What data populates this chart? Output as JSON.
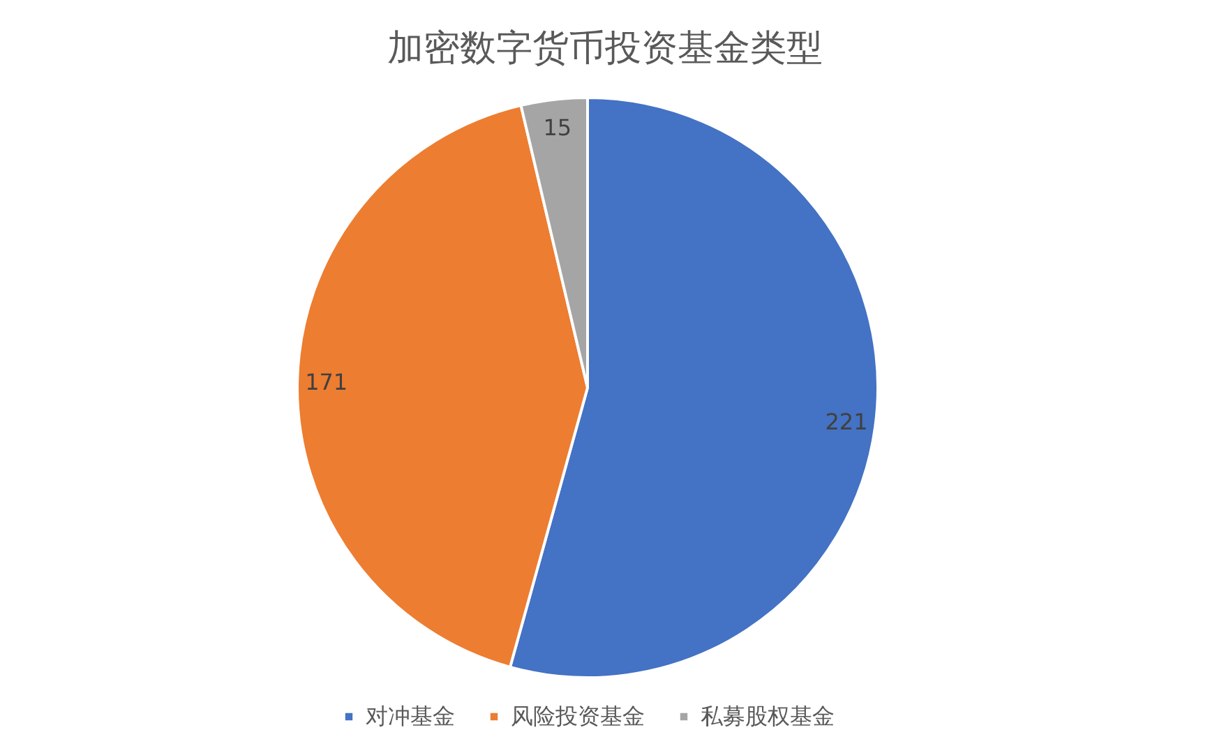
{
  "chart_data": {
    "type": "pie",
    "title": "加密数字货币投资基金类型",
    "categories": [
      "对冲基金",
      "风险投资基金",
      "私募股权基金"
    ],
    "values": [
      221,
      171,
      15
    ],
    "colors": [
      "#4472c4",
      "#ed7d31",
      "#a5a5a5"
    ],
    "data_labels": true,
    "legend": "bottom"
  }
}
